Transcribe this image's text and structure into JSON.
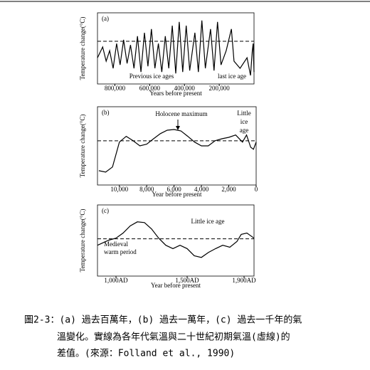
{
  "chart_data": [
    {
      "type": "line",
      "panel": "(a)",
      "ylabel": "Temperature change(°C)",
      "xlabel": "Years before present",
      "annotations": [
        "Previous ice ages",
        "last ice age"
      ],
      "xlim": [
        900000,
        0
      ],
      "ylim": [
        -1.5,
        1
      ],
      "xticks": [
        {
          "value": 800000,
          "label": "800,000"
        },
        {
          "value": 600000,
          "label": "600,000"
        },
        {
          "value": 400000,
          "label": "400,000"
        },
        {
          "value": 200000,
          "label": "200,000"
        }
      ],
      "x": [
        900000,
        870000,
        850000,
        830000,
        810000,
        790000,
        770000,
        750000,
        730000,
        710000,
        690000,
        670000,
        650000,
        630000,
        610000,
        590000,
        570000,
        550000,
        530000,
        510000,
        490000,
        470000,
        450000,
        430000,
        410000,
        390000,
        370000,
        340000,
        320000,
        300000,
        280000,
        250000,
        230000,
        210000,
        190000,
        160000,
        130000,
        115000,
        80000,
        40000,
        20000,
        10000,
        5000,
        0
      ],
      "series": [
        {
          "color": "#000000",
          "values": [
            -0.58,
            -0.2,
            -0.7,
            -0.33,
            -0.95,
            -0.08,
            -0.83,
            0.05,
            -0.78,
            -0.13,
            -0.95,
            0.18,
            -1.08,
            0.3,
            -0.88,
            0.43,
            -0.95,
            -0.08,
            -1.08,
            0.18,
            -0.95,
            0.55,
            -1.13,
            0.68,
            -1.08,
            0.55,
            -1.03,
            0.3,
            -1.08,
            0.73,
            -0.95,
            0.43,
            -1.03,
            0.68,
            -0.83,
            -0.33,
            0.43,
            -0.7,
            -0.95,
            -0.58,
            -1.2,
            -0.33,
            -0.08,
            -1.08
          ]
        }
      ]
    },
    {
      "type": "line",
      "panel": "(b)",
      "ylabel": "Temperature change(°C)",
      "xlabel": "Year before present",
      "annotations": [
        "Holocene maximum",
        "Little",
        "ice",
        "age"
      ],
      "xlim": [
        11600,
        0
      ],
      "ylim": [
        -1.3,
        1
      ],
      "xticks": [
        {
          "value": 10000,
          "label": "10,000"
        },
        {
          "value": 8000,
          "label": "8,000"
        },
        {
          "value": 6000,
          "label": "6,000"
        },
        {
          "value": 4000,
          "label": "4,000"
        },
        {
          "value": 2000,
          "label": "2,000"
        },
        0
      ],
      "x": [
        11500,
        11000,
        10500,
        10000,
        9500,
        9000,
        8500,
        8000,
        7500,
        7000,
        6500,
        6000,
        5500,
        5000,
        4500,
        4000,
        3500,
        3000,
        2500,
        2000,
        1500,
        1000,
        700,
        400,
        200,
        0
      ],
      "series": [
        {
          "color": "#000000",
          "values": [
            -0.88,
            -0.92,
            -0.77,
            -0.04,
            0.13,
            0,
            -0.15,
            -0.1,
            0.06,
            0.21,
            0.31,
            0.33,
            0.29,
            0.13,
            -0.04,
            -0.15,
            -0.15,
            0,
            0.06,
            0.1,
            0.17,
            -0.04,
            0.17,
            -0.19,
            -0.25,
            -0.04
          ]
        }
      ]
    },
    {
      "type": "line",
      "panel": "(c)",
      "ylabel": "Temperature change(°C)",
      "xlabel": "Year before present",
      "annotations": [
        "Little ice age",
        "Medieval",
        "warm period"
      ],
      "xlim": [
        870,
        1970
      ],
      "ylim": [
        -1.1,
        1
      ],
      "xticks": [
        {
          "value": 1000,
          "label": "1,000AD"
        },
        {
          "value": 1500,
          "label": "1,500AD"
        },
        {
          "value": 1900,
          "label": "1,900AD"
        }
      ],
      "x": [
        870,
        950,
        1000,
        1050,
        1100,
        1150,
        1200,
        1250,
        1300,
        1350,
        1400,
        1450,
        1500,
        1550,
        1600,
        1650,
        1700,
        1750,
        1800,
        1850,
        1880,
        1920,
        1970
      ],
      "series": [
        {
          "color": "#000000",
          "values": [
            -0.19,
            -0.04,
            0.02,
            0.17,
            0.38,
            0.5,
            0.48,
            0.29,
            0.02,
            -0.19,
            -0.29,
            -0.19,
            -0.29,
            -0.5,
            -0.55,
            -0.4,
            -0.29,
            -0.19,
            -0.25,
            -0.08,
            0.13,
            0.17,
            0.02
          ]
        }
      ]
    }
  ],
  "caption": [
    "圖2-3：(a) 過去百萬年，(b) 過去一萬年，(c) 過去一千年的氣",
    "溫變化。實線為各年代氣溫與二十世紀初期氣溫(虛線)的",
    "差值。(來源：Folland et al., 1990)"
  ]
}
